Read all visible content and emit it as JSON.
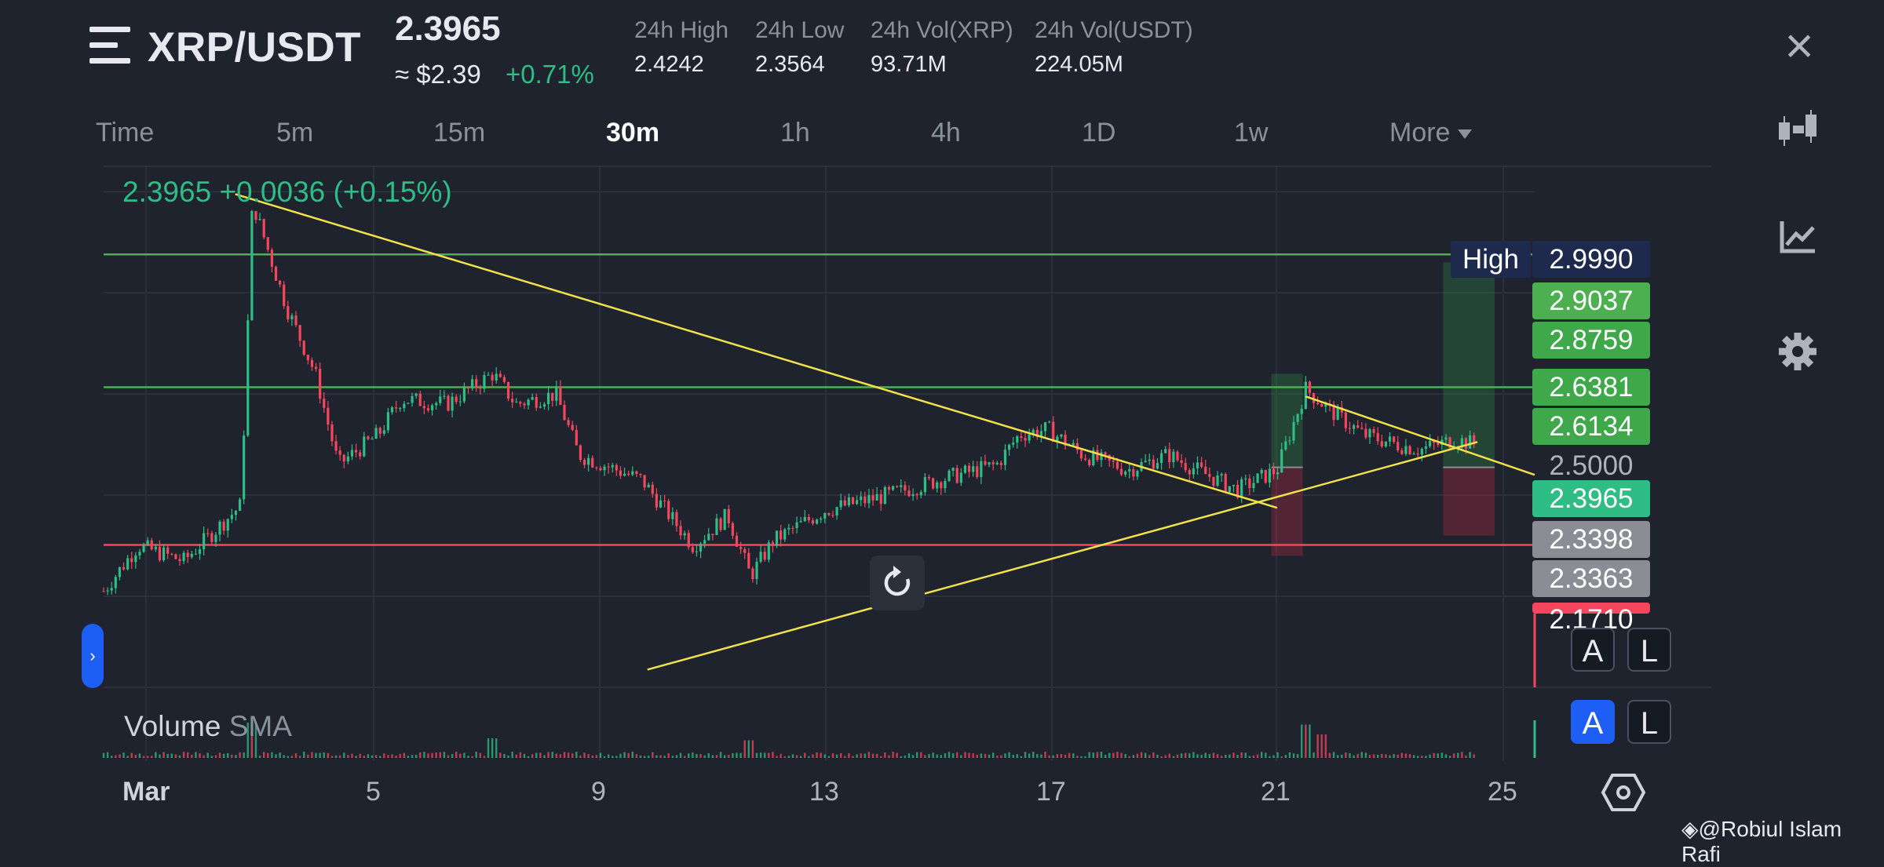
{
  "header": {
    "pair": "XRP/USDT",
    "last_price": "2.3965",
    "usd_price": "≈ $2.39",
    "change_pct": "+0.71%",
    "stats": [
      {
        "label": "24h High",
        "value": "2.4242"
      },
      {
        "label": "24h Low",
        "value": "2.3564"
      },
      {
        "label": "24h Vol(XRP)",
        "value": "93.71M"
      },
      {
        "label": "24h Vol(USDT)",
        "value": "224.05M"
      }
    ]
  },
  "timeframes": [
    "Time",
    "5m",
    "15m",
    "30m",
    "1h",
    "4h",
    "1D",
    "1w",
    "More"
  ],
  "active_timeframe": "30m",
  "ohlc_readout": "2.3965  +0.0036 (+0.15%)",
  "price_axis": {
    "high_label": "High",
    "tags": [
      {
        "value": "2.9990",
        "color": "#1d2a4d"
      },
      {
        "value": "2.9037",
        "color": "#4caf50"
      },
      {
        "value": "2.8759",
        "color": "#3ea84a"
      },
      {
        "value": "2.6381",
        "color": "#3ea84a"
      },
      {
        "value": "2.6134",
        "color": "#3ea84a"
      },
      {
        "value": "2.5000",
        "color": "none"
      },
      {
        "value": "2.3965",
        "color": "#2ebd85"
      },
      {
        "value": "2.3398",
        "color": "#8a8d93"
      },
      {
        "value": "2.3363",
        "color": "#8a8d93"
      },
      {
        "value": "2.1710",
        "color": "#f6465d"
      }
    ]
  },
  "x_axis": [
    "Mar",
    "5",
    "9",
    "13",
    "17",
    "21",
    "25"
  ],
  "volume": {
    "label": "Volume",
    "sma": "SMA"
  },
  "buttons": {
    "auto": "A",
    "log": "L"
  },
  "watermark": "@Robiul Islam Rafi",
  "chart_data": {
    "type": "candlestick",
    "series_path": [
      [
        0,
        2.21
      ],
      [
        1.2,
        2.3
      ],
      [
        2.8,
        2.27
      ],
      [
        4.8,
        2.38
      ],
      [
        5.2,
        2.98
      ],
      [
        6.4,
        2.77
      ],
      [
        7.4,
        2.64
      ],
      [
        8.2,
        2.46
      ],
      [
        9.6,
        2.52
      ],
      [
        10.4,
        2.59
      ],
      [
        12.0,
        2.58
      ],
      [
        13.6,
        2.64
      ],
      [
        14.4,
        2.58
      ],
      [
        15.8,
        2.6
      ],
      [
        16.6,
        2.48
      ],
      [
        18.8,
        2.43
      ],
      [
        20.6,
        2.3
      ],
      [
        21.8,
        2.36
      ],
      [
        22.6,
        2.24
      ],
      [
        23.4,
        2.31
      ],
      [
        25.2,
        2.37
      ],
      [
        27.4,
        2.4
      ],
      [
        29.2,
        2.43
      ],
      [
        31.2,
        2.46
      ],
      [
        32.0,
        2.52
      ],
      [
        33.0,
        2.53
      ],
      [
        34.2,
        2.48
      ],
      [
        35.8,
        2.45
      ],
      [
        37.2,
        2.48
      ],
      [
        38.2,
        2.45
      ],
      [
        39.6,
        2.41
      ],
      [
        41.0,
        2.45
      ],
      [
        42.0,
        2.61
      ],
      [
        42.8,
        2.57
      ],
      [
        44.0,
        2.52
      ],
      [
        45.2,
        2.5
      ],
      [
        46.0,
        2.49
      ],
      [
        47.2,
        2.51
      ],
      [
        48.0,
        2.5
      ]
    ],
    "horizontal_lines": [
      2.8759,
      2.6134,
      2.3015
    ],
    "trendlines": [
      [
        [
          4.6,
          2.995
        ],
        [
          41.0,
          2.375
        ]
      ],
      [
        [
          19.0,
          2.055
        ],
        [
          48.0,
          2.505
        ]
      ],
      [
        [
          42.0,
          2.595
        ],
        [
          50.0,
          2.44
        ]
      ]
    ],
    "position_boxes": [
      {
        "x": [
          40.8,
          41.9
        ],
        "entry": 2.455,
        "target": 2.64,
        "stop": 2.28
      },
      {
        "x": [
          46.8,
          48.6
        ],
        "entry": 2.455,
        "target": 2.86,
        "stop": 2.32
      }
    ],
    "volume_spikes": [
      [
        5.2,
        0.9
      ],
      [
        13.6,
        0.5
      ],
      [
        22.6,
        0.45
      ],
      [
        42.0,
        0.85
      ],
      [
        42.6,
        0.6
      ]
    ],
    "y_range": [
      2.02,
      3.05
    ],
    "x_ticks": [
      "Mar",
      "5",
      "9",
      "13",
      "17",
      "21",
      "25"
    ],
    "grid": true
  }
}
